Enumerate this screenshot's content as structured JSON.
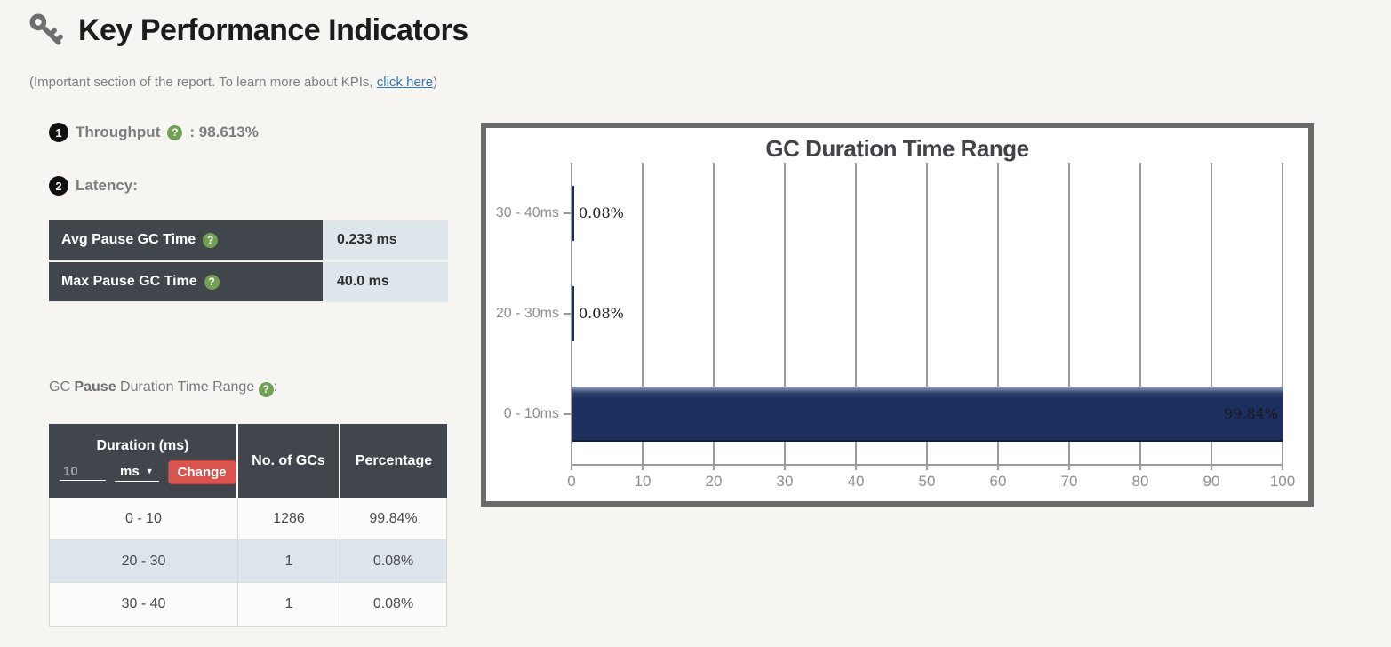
{
  "page": {
    "title": "Key Performance Indicators",
    "subtitle_prefix": "(Important section of the report. To learn more about KPIs, ",
    "subtitle_link": "click here",
    "subtitle_suffix": ")"
  },
  "kpis": {
    "throughput": {
      "number": "1",
      "label": "Throughput",
      "help_icon": "?",
      "value_display": ": 98.613%"
    },
    "latency": {
      "number": "2",
      "label": "Latency:"
    }
  },
  "latency_table": {
    "rows": [
      {
        "label": "Avg Pause GC Time",
        "value": "0.233 ms"
      },
      {
        "label": "Max Pause GC Time",
        "value": "40.0 ms"
      }
    ]
  },
  "duration_section": {
    "label": {
      "prefix": "GC ",
      "bold": "Pause",
      "suffix": " Duration Time Range ",
      "colon": ":"
    },
    "table": {
      "col1_header": "Duration (ms)",
      "input_value": "10",
      "unit_selected": "ms",
      "change_button": "Change",
      "col2_header": "No. of GCs",
      "col3_header": "Percentage",
      "rows": [
        {
          "duration": "0 - 10",
          "gcs": "1286",
          "pct": "99.84%"
        },
        {
          "duration": "20 - 30",
          "gcs": "1",
          "pct": "0.08%"
        },
        {
          "duration": "30 - 40",
          "gcs": "1",
          "pct": "0.08%"
        }
      ]
    }
  },
  "chart_data": {
    "type": "bar",
    "orientation": "horizontal",
    "title": "GC Duration Time Range",
    "categories": [
      "30 - 40ms",
      "20 - 30ms",
      "0 - 10ms"
    ],
    "values": [
      0.08,
      0.08,
      99.84
    ],
    "value_labels": [
      "0.08%",
      "0.08%",
      "99.84%"
    ],
    "xlabel": "",
    "ylabel": "",
    "xlim": [
      0,
      100
    ],
    "x_ticks": [
      0,
      10,
      20,
      30,
      40,
      50,
      60,
      70,
      80,
      90,
      100
    ],
    "grid": true,
    "legend": false,
    "bar_color": "#1c2f5f"
  },
  "colors": {
    "accent_red": "#d9534f",
    "link_blue": "#337ab7",
    "help_green": "#72a055",
    "bar_navy": "#1c2f5f",
    "table_header_dark": "#40464c",
    "value_cell_light": "#dee6eb",
    "stripe_row": "#dce4ec"
  }
}
